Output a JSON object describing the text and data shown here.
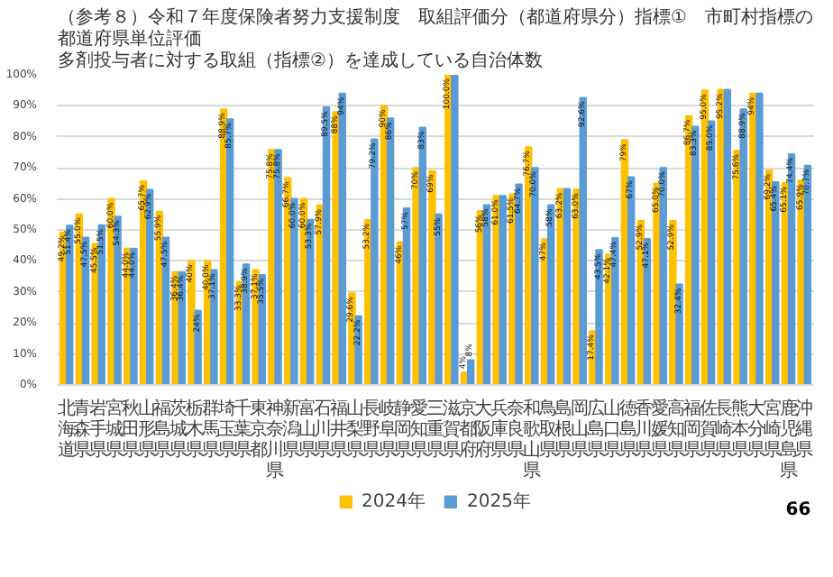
{
  "chart_data": {
    "type": "bar",
    "title": "（参考８）令和７年度保険者努力支援制度　取組評価分（都道府県分）指標①　市町村指標の都道府県単位評価",
    "subtitle": "多剤投与者に対する取組（指標②）を達成している自治体数",
    "categories": [
      "北海道",
      "青森県",
      "岩手県",
      "宮城県",
      "秋田県",
      "山形県",
      "福島県",
      "茨城県",
      "栃木県",
      "群馬県",
      "埼玉県",
      "千葉県",
      "東京都",
      "神奈川県",
      "新潟県",
      "富山県",
      "石川県",
      "福井県",
      "山梨県",
      "長野県",
      "岐阜県",
      "静岡県",
      "愛知県",
      "三重県",
      "滋賀県",
      "京都府",
      "大阪府",
      "兵庫県",
      "奈良県",
      "和歌山県",
      "鳥取県",
      "島根県",
      "岡山県",
      "広島県",
      "山口県",
      "徳島県",
      "香川県",
      "愛媛県",
      "高知県",
      "福岡県",
      "佐賀県",
      "長崎県",
      "熊本県",
      "大分県",
      "宮崎県",
      "鹿児島県",
      "沖縄県"
    ],
    "series": [
      {
        "name": "2024年",
        "color": "#ffc000",
        "values": [
          49.2,
          55.0,
          45.5,
          60.0,
          44.0,
          65.7,
          55.9,
          36.4,
          40,
          40.0,
          88.9,
          33.3,
          37.1,
          75.8,
          66.7,
          60.0,
          57.9,
          88,
          29.6,
          53.2,
          90,
          46,
          70,
          69,
          100.0,
          4,
          56,
          61.0,
          61.5,
          76.7,
          47,
          63.2,
          63.0,
          17.4,
          42.1,
          79,
          52.9,
          65.0,
          52.9,
          86.7,
          95.0,
          95.2,
          75.6,
          94,
          69.2,
          65.1,
          65.9
        ],
        "value_labels": [
          "49.2%",
          "55.0%",
          "45.5%",
          "60.0%",
          "44.0%",
          "65.7%",
          "55.9%",
          "36.4%",
          "40%",
          "40.0%",
          "88.9%",
          "33.3%",
          "37.1%",
          "75.8%",
          "66.7%",
          "60.0%",
          "57.9%",
          "88%",
          "29.6%",
          "53.2%",
          "90%",
          "46%",
          "70%",
          "69%",
          "100.0%",
          "4%",
          "56%",
          "61.0%",
          "61.5%",
          "76.7%",
          "47%",
          "63.2%",
          "63.0%",
          "17.4%",
          "42.1%",
          "79%",
          "52.9%",
          "65.0%",
          "52.9%",
          "86.7%",
          "95.0%",
          "95.2%",
          "75.6%",
          "94%",
          "69.2%",
          "65.1%",
          "65.9%"
        ]
      },
      {
        "name": "2025年",
        "color": "#5b9bd5",
        "values": [
          51.4,
          47.5,
          51.5,
          54.3,
          44.0,
          62.9,
          47.5,
          36.4,
          24,
          37.1,
          85.7,
          38.9,
          35.5,
          75.8,
          60.0,
          53.3,
          89.5,
          94,
          22.2,
          79.2,
          86,
          57,
          83,
          55,
          100.0,
          8,
          58,
          61.0,
          64.7,
          70.0,
          58,
          63.2,
          92.6,
          43.5,
          47.4,
          67,
          47.1,
          70.0,
          32.4,
          83.3,
          85.0,
          95.2,
          88.9,
          94,
          65.4,
          74.4,
          70.7
        ],
        "value_labels": [
          "51.4%",
          "47.5%",
          "51.5%",
          "54.3%",
          "44.0%",
          "62.9%",
          "47.5%",
          "36.4%",
          "24%",
          "37.1%",
          "85.7%",
          "38.9%",
          "35.5%",
          "75.8%",
          "60.0%",
          "53.3%",
          "89.5%",
          "94%",
          "22.2%",
          "79.2%",
          "86%",
          "57%",
          "83%",
          "55%",
          null,
          "8%",
          "58%",
          null,
          "64.7%",
          "70.0%",
          "58%",
          null,
          "92.6%",
          "43.5%",
          "47.4%",
          "67%",
          "47.1%",
          "70.0%",
          "32.4%",
          "83.3%",
          "85.0%",
          null,
          "88.9%",
          null,
          "65.4%",
          "74.4%",
          "70.7%"
        ]
      }
    ],
    "ylim": [
      0,
      100
    ],
    "yticks": [
      {
        "value": 0,
        "label": "0%"
      },
      {
        "value": 10,
        "label": "10%"
      },
      {
        "value": 20,
        "label": "20%"
      },
      {
        "value": 30,
        "label": "30%"
      },
      {
        "value": 40,
        "label": "40%"
      },
      {
        "value": 50,
        "label": "50%"
      },
      {
        "value": 60,
        "label": "60%"
      },
      {
        "value": 70,
        "label": "70%"
      },
      {
        "value": 80,
        "label": "80%"
      },
      {
        "value": 90,
        "label": "90%"
      },
      {
        "value": 100,
        "label": "100%"
      }
    ],
    "grid": "y",
    "legend": "bottom",
    "annotations": [
      {
        "text": "66"
      }
    ]
  }
}
